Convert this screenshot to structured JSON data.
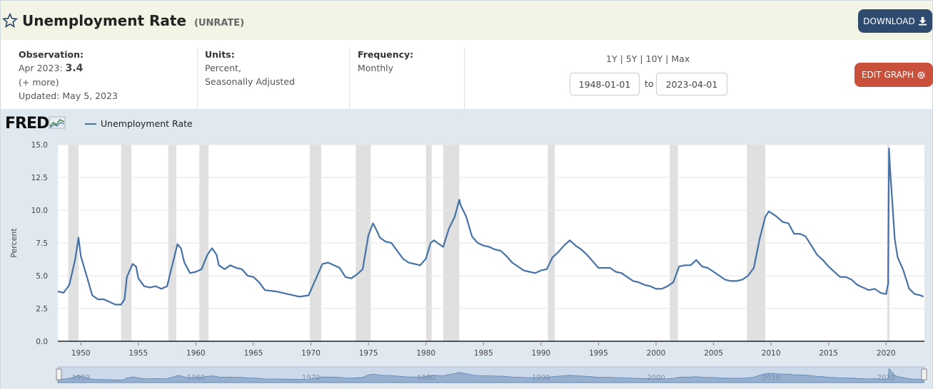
{
  "header": {
    "title": "Unemployment Rate",
    "series_id": "(UNRATE)",
    "download_label": "DOWNLOAD",
    "edit_label": "EDIT GRAPH"
  },
  "observation": {
    "label": "Observation:",
    "date": "Apr 2023:",
    "value": "3.4",
    "more": "(+ more)",
    "updated": "Updated: May 5, 2023"
  },
  "units": {
    "label": "Units:",
    "line1": "Percent,",
    "line2": "Seasonally Adjusted"
  },
  "frequency": {
    "label": "Frequency:",
    "value": "Monthly"
  },
  "range_links": [
    "1Y",
    "5Y",
    "10Y",
    "Max"
  ],
  "dates": {
    "start": "1948-01-01",
    "to": "to",
    "end": "2023-04-01"
  },
  "brand": {
    "logo": "FRED"
  },
  "colors": {
    "line": "#4572a7",
    "recession": "#e0e0e0",
    "edit": "#c9503a",
    "download": "#2e4a6e"
  },
  "chart_data": {
    "type": "line",
    "ylabel": "Percent",
    "legend": "Unemployment Rate",
    "ylim": [
      0,
      15
    ],
    "xlim": [
      1948.0,
      2023.33
    ],
    "yticks": [
      "0.0",
      "2.5",
      "5.0",
      "7.5",
      "10.0",
      "12.5",
      "15.0"
    ],
    "xticks": [
      "1950",
      "1955",
      "1960",
      "1965",
      "1970",
      "1975",
      "1980",
      "1985",
      "1990",
      "1995",
      "2000",
      "2005",
      "2010",
      "2015",
      "2020"
    ],
    "navigator_labels": [
      "1950",
      "1960",
      "1970",
      "1980",
      "1990",
      "2000",
      "2010",
      "2020"
    ],
    "recessions": [
      [
        1948.9,
        1949.8
      ],
      [
        1953.5,
        1954.4
      ],
      [
        1957.6,
        1958.3
      ],
      [
        1960.3,
        1961.1
      ],
      [
        1969.9,
        1970.9
      ],
      [
        1973.9,
        1975.2
      ],
      [
        1980.0,
        1980.5
      ],
      [
        1981.5,
        1982.9
      ],
      [
        1990.6,
        1991.2
      ],
      [
        2001.2,
        2001.9
      ],
      [
        2007.9,
        2009.5
      ],
      [
        2020.1,
        2020.3
      ]
    ],
    "series": [
      {
        "name": "Unemployment Rate",
        "x": [
          1948.0,
          1948.5,
          1949.0,
          1949.5,
          1949.8,
          1950.0,
          1950.5,
          1951.0,
          1951.5,
          1952.0,
          1952.5,
          1953.0,
          1953.5,
          1953.8,
          1954.0,
          1954.5,
          1954.8,
          1955.0,
          1955.5,
          1956.0,
          1956.5,
          1957.0,
          1957.5,
          1958.0,
          1958.4,
          1958.7,
          1959.0,
          1959.5,
          1960.0,
          1960.5,
          1961.0,
          1961.4,
          1961.8,
          1962.0,
          1962.5,
          1963.0,
          1963.5,
          1964.0,
          1964.5,
          1965.0,
          1965.5,
          1966.0,
          1967.0,
          1968.0,
          1969.0,
          1969.8,
          1970.0,
          1970.5,
          1971.0,
          1971.5,
          1972.0,
          1972.5,
          1973.0,
          1973.5,
          1974.0,
          1974.5,
          1975.0,
          1975.4,
          1975.8,
          1976.0,
          1976.5,
          1977.0,
          1977.5,
          1978.0,
          1978.5,
          1979.0,
          1979.5,
          1980.0,
          1980.4,
          1980.7,
          1981.0,
          1981.5,
          1982.0,
          1982.5,
          1982.9,
          1983.0,
          1983.5,
          1984.0,
          1984.5,
          1985.0,
          1985.5,
          1986.0,
          1986.5,
          1987.0,
          1987.5,
          1988.0,
          1988.5,
          1989.0,
          1989.5,
          1990.0,
          1990.5,
          1991.0,
          1991.5,
          1992.0,
          1992.5,
          1993.0,
          1993.5,
          1994.0,
          1994.5,
          1995.0,
          1995.5,
          1996.0,
          1996.5,
          1997.0,
          1997.5,
          1998.0,
          1998.5,
          1999.0,
          1999.5,
          2000.0,
          2000.5,
          2001.0,
          2001.5,
          2002.0,
          2002.5,
          2003.0,
          2003.5,
          2004.0,
          2004.5,
          2005.0,
          2005.5,
          2006.0,
          2006.5,
          2007.0,
          2007.5,
          2008.0,
          2008.5,
          2009.0,
          2009.5,
          2009.8,
          2010.0,
          2010.5,
          2011.0,
          2011.5,
          2012.0,
          2012.5,
          2013.0,
          2013.5,
          2014.0,
          2014.5,
          2015.0,
          2015.5,
          2016.0,
          2016.5,
          2017.0,
          2017.5,
          2018.0,
          2018.5,
          2019.0,
          2019.5,
          2020.0,
          2020.17,
          2020.25,
          2020.33,
          2020.5,
          2020.75,
          2021.0,
          2021.5,
          2022.0,
          2022.5,
          2023.0,
          2023.25
        ],
        "values": [
          3.8,
          3.7,
          4.3,
          6.2,
          7.9,
          6.5,
          5.0,
          3.5,
          3.2,
          3.2,
          3.0,
          2.8,
          2.8,
          3.2,
          4.9,
          5.9,
          5.7,
          4.8,
          4.2,
          4.1,
          4.2,
          4.0,
          4.2,
          6.0,
          7.4,
          7.1,
          6.0,
          5.2,
          5.3,
          5.5,
          6.6,
          7.1,
          6.6,
          5.8,
          5.5,
          5.8,
          5.6,
          5.5,
          5.0,
          4.9,
          4.5,
          3.9,
          3.8,
          3.6,
          3.4,
          3.5,
          3.9,
          4.9,
          5.9,
          6.0,
          5.8,
          5.6,
          4.9,
          4.8,
          5.1,
          5.5,
          8.1,
          9.0,
          8.3,
          7.9,
          7.6,
          7.5,
          6.9,
          6.3,
          6.0,
          5.9,
          5.8,
          6.3,
          7.5,
          7.7,
          7.5,
          7.2,
          8.6,
          9.5,
          10.8,
          10.4,
          9.5,
          8.0,
          7.5,
          7.3,
          7.2,
          7.0,
          6.9,
          6.5,
          6.0,
          5.7,
          5.4,
          5.3,
          5.2,
          5.4,
          5.5,
          6.4,
          6.8,
          7.3,
          7.7,
          7.3,
          7.0,
          6.6,
          6.1,
          5.6,
          5.6,
          5.6,
          5.3,
          5.2,
          4.9,
          4.6,
          4.5,
          4.3,
          4.2,
          4.0,
          4.0,
          4.2,
          4.5,
          5.7,
          5.8,
          5.8,
          6.2,
          5.7,
          5.6,
          5.3,
          5.0,
          4.7,
          4.6,
          4.6,
          4.7,
          5.0,
          5.6,
          7.8,
          9.5,
          9.9,
          9.8,
          9.5,
          9.1,
          9.0,
          8.2,
          8.2,
          8.0,
          7.3,
          6.6,
          6.2,
          5.7,
          5.3,
          4.9,
          4.9,
          4.7,
          4.3,
          4.1,
          3.9,
          4.0,
          3.7,
          3.6,
          4.4,
          14.7,
          13.3,
          11.1,
          7.8,
          6.4,
          5.4,
          4.0,
          3.6,
          3.5,
          3.4
        ]
      }
    ]
  }
}
